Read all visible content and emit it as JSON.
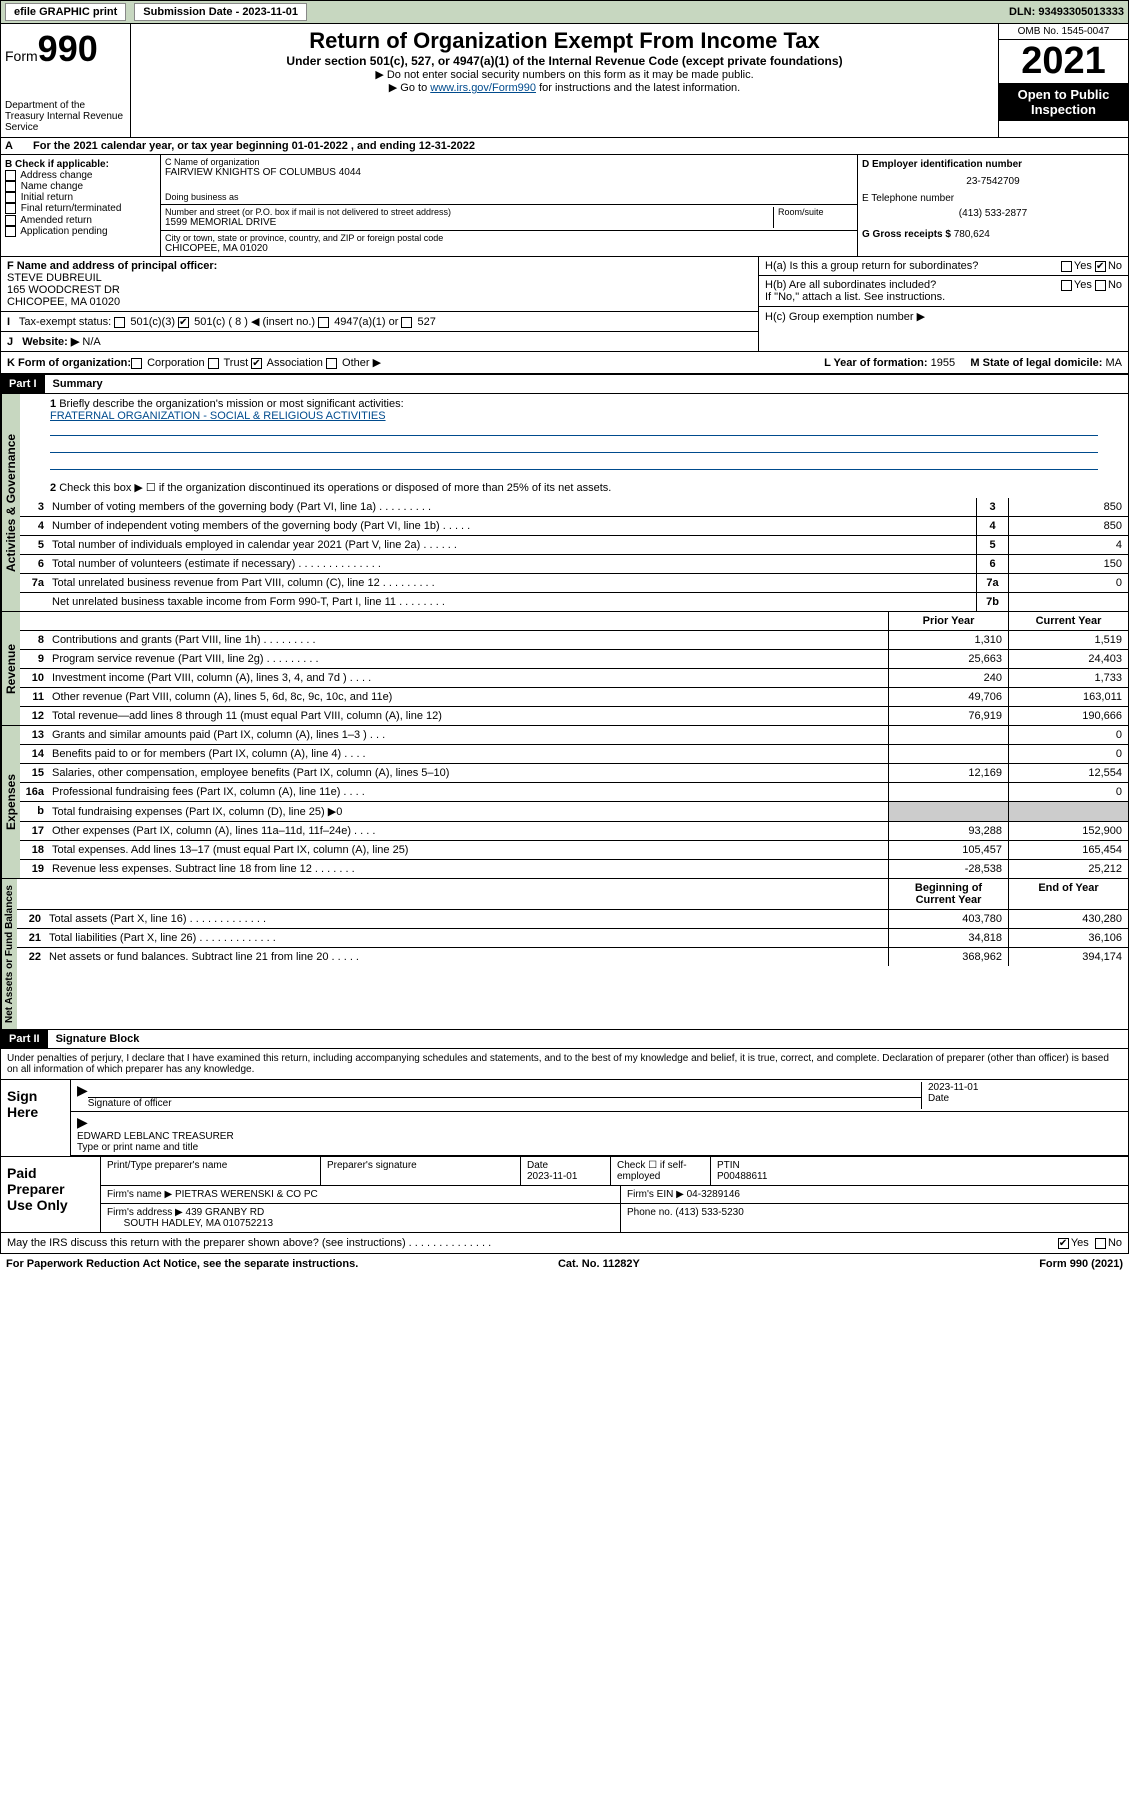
{
  "topbar": {
    "efile": "efile GRAPHIC print",
    "sub_label": "Submission Date - 2023-11-01",
    "dln": "DLN: 93493305013333"
  },
  "header": {
    "form_prefix": "Form",
    "form_number": "990",
    "title": "Return of Organization Exempt From Income Tax",
    "subtitle": "Under section 501(c), 527, or 4947(a)(1) of the Internal Revenue Code (except private foundations)",
    "note1": "▶ Do not enter social security numbers on this form as it may be made public.",
    "note2_pre": "▶ Go to ",
    "note2_link": "www.irs.gov/Form990",
    "note2_post": " for instructions and the latest information.",
    "omb": "OMB No. 1545-0047",
    "year": "2021",
    "open_pub": "Open to Public Inspection",
    "dept": "Department of the Treasury Internal Revenue Service"
  },
  "line_a": "For the 2021 calendar year, or tax year beginning 01-01-2022 , and ending 12-31-2022",
  "box_b": {
    "header": "B Check if applicable:",
    "items": [
      "Address change",
      "Name change",
      "Initial return",
      "Final return/terminated",
      "Amended return",
      "Application pending"
    ]
  },
  "box_c": {
    "name_label": "C Name of organization",
    "name": "FAIRVIEW KNIGHTS OF COLUMBUS 4044",
    "dba_label": "Doing business as",
    "dba": "",
    "street_label": "Number and street (or P.O. box if mail is not delivered to street address)",
    "room_label": "Room/suite",
    "street": "1599 MEMORIAL DRIVE",
    "city_label": "City or town, state or province, country, and ZIP or foreign postal code",
    "city": "CHICOPEE, MA  01020"
  },
  "box_d": {
    "ein_label": "D Employer identification number",
    "ein": "23-7542709",
    "phone_label": "E Telephone number",
    "phone": "(413) 533-2877",
    "gross_label": "G Gross receipts $",
    "gross": "780,624"
  },
  "box_f": {
    "label": "F Name and address of principal officer:",
    "name": "STEVE DUBREUIL",
    "addr1": "165 WOODCREST DR",
    "addr2": "CHICOPEE, MA  01020"
  },
  "box_h": {
    "ha": "H(a) Is this a group return for subordinates?",
    "hb": "H(b) Are all subordinates included?",
    "hb_note": "If \"No,\" attach a list. See instructions.",
    "hc": "H(c) Group exemption number ▶",
    "yes": "Yes",
    "no": "No"
  },
  "box_i": {
    "label": "Tax-exempt status:",
    "opt1": "501(c)(3)",
    "opt2": "501(c) ( 8 ) ◀ (insert no.)",
    "opt3": "4947(a)(1) or",
    "opt4": "527"
  },
  "box_j": {
    "label": "Website: ▶",
    "val": "N/A"
  },
  "box_k": {
    "label": "K Form of organization:",
    "opts": [
      "Corporation",
      "Trust",
      "Association",
      "Other ▶"
    ],
    "year_label": "L Year of formation:",
    "year": "1955",
    "state_label": "M State of legal domicile:",
    "state": "MA"
  },
  "part1": {
    "hdr": "Part I",
    "title": "Summary",
    "line1_label": "Briefly describe the organization's mission or most significant activities:",
    "line1_text": "FRATERNAL ORGANIZATION - SOCIAL & RELIGIOUS ACTIVITIES",
    "line2": "Check this box ▶ ☐ if the organization discontinued its operations or disposed of more than 25% of its net assets.",
    "vtab_ag": "Activities & Governance",
    "vtab_rev": "Revenue",
    "vtab_exp": "Expenses",
    "vtab_na": "Net Assets or Fund Balances",
    "rows_ag": [
      {
        "n": "3",
        "d": "Number of voting members of the governing body (Part VI, line 1a) . . . . . . . . .",
        "b": "3",
        "v": "850"
      },
      {
        "n": "4",
        "d": "Number of independent voting members of the governing body (Part VI, line 1b) . . . . .",
        "b": "4",
        "v": "850"
      },
      {
        "n": "5",
        "d": "Total number of individuals employed in calendar year 2021 (Part V, line 2a) . . . . . .",
        "b": "5",
        "v": "4"
      },
      {
        "n": "6",
        "d": "Total number of volunteers (estimate if necessary) . . . . . . . . . . . . . .",
        "b": "6",
        "v": "150"
      },
      {
        "n": "7a",
        "d": "Total unrelated business revenue from Part VIII, column (C), line 12 . . . . . . . . .",
        "b": "7a",
        "v": "0"
      },
      {
        "n": "",
        "d": "Net unrelated business taxable income from Form 990-T, Part I, line 11 . . . . . . . .",
        "b": "7b",
        "v": ""
      }
    ],
    "col_prior": "Prior Year",
    "col_current": "Current Year",
    "col_begin": "Beginning of Current Year",
    "col_end": "End of Year",
    "rows_rev": [
      {
        "n": "8",
        "d": "Contributions and grants (Part VIII, line 1h) . . . . . . . . .",
        "p": "1,310",
        "c": "1,519"
      },
      {
        "n": "9",
        "d": "Program service revenue (Part VIII, line 2g) . . . . . . . . .",
        "p": "25,663",
        "c": "24,403"
      },
      {
        "n": "10",
        "d": "Investment income (Part VIII, column (A), lines 3, 4, and 7d ) . . . .",
        "p": "240",
        "c": "1,733"
      },
      {
        "n": "11",
        "d": "Other revenue (Part VIII, column (A), lines 5, 6d, 8c, 9c, 10c, and 11e)",
        "p": "49,706",
        "c": "163,011"
      },
      {
        "n": "12",
        "d": "Total revenue—add lines 8 through 11 (must equal Part VIII, column (A), line 12)",
        "p": "76,919",
        "c": "190,666"
      }
    ],
    "rows_exp": [
      {
        "n": "13",
        "d": "Grants and similar amounts paid (Part IX, column (A), lines 1–3 ) . . .",
        "p": "",
        "c": "0"
      },
      {
        "n": "14",
        "d": "Benefits paid to or for members (Part IX, column (A), line 4) . . . .",
        "p": "",
        "c": "0"
      },
      {
        "n": "15",
        "d": "Salaries, other compensation, employee benefits (Part IX, column (A), lines 5–10)",
        "p": "12,169",
        "c": "12,554"
      },
      {
        "n": "16a",
        "d": "Professional fundraising fees (Part IX, column (A), line 11e) . . . .",
        "p": "",
        "c": "0"
      },
      {
        "n": "b",
        "d": "Total fundraising expenses (Part IX, column (D), line 25) ▶0",
        "p": "grey",
        "c": "grey"
      },
      {
        "n": "17",
        "d": "Other expenses (Part IX, column (A), lines 11a–11d, 11f–24e) . . . .",
        "p": "93,288",
        "c": "152,900"
      },
      {
        "n": "18",
        "d": "Total expenses. Add lines 13–17 (must equal Part IX, column (A), line 25)",
        "p": "105,457",
        "c": "165,454"
      },
      {
        "n": "19",
        "d": "Revenue less expenses. Subtract line 18 from line 12 . . . . . . .",
        "p": "-28,538",
        "c": "25,212"
      }
    ],
    "rows_na": [
      {
        "n": "20",
        "d": "Total assets (Part X, line 16) . . . . . . . . . . . . .",
        "p": "403,780",
        "c": "430,280"
      },
      {
        "n": "21",
        "d": "Total liabilities (Part X, line 26) . . . . . . . . . . . . .",
        "p": "34,818",
        "c": "36,106"
      },
      {
        "n": "22",
        "d": "Net assets or fund balances. Subtract line 21 from line 20 . . . . .",
        "p": "368,962",
        "c": "394,174"
      }
    ]
  },
  "part2": {
    "hdr": "Part II",
    "title": "Signature Block",
    "decl": "Under penalties of perjury, I declare that I have examined this return, including accompanying schedules and statements, and to the best of my knowledge and belief, it is true, correct, and complete. Declaration of preparer (other than officer) is based on all information of which preparer has any knowledge.",
    "sign_here": "Sign Here",
    "sig_officer": "Signature of officer",
    "sig_date": "2023-11-01",
    "date_lbl": "Date",
    "officer_name": "EDWARD LEBLANC TREASURER",
    "officer_name_lbl": "Type or print name and title",
    "paid_prep": "Paid Preparer Use Only",
    "pt_name_lbl": "Print/Type preparer's name",
    "pt_sig_lbl": "Preparer's signature",
    "pt_date_lbl": "Date",
    "pt_date": "2023-11-01",
    "pt_check": "Check ☐ if self-employed",
    "ptin_lbl": "PTIN",
    "ptin": "P00488611",
    "firm_name_lbl": "Firm's name ▶",
    "firm_name": "PIETRAS WERENSKI & CO PC",
    "firm_ein_lbl": "Firm's EIN ▶",
    "firm_ein": "04-3289146",
    "firm_addr_lbl": "Firm's address ▶",
    "firm_addr1": "439 GRANBY RD",
    "firm_addr2": "SOUTH HADLEY, MA  010752213",
    "firm_phone_lbl": "Phone no.",
    "firm_phone": "(413) 533-5230",
    "discuss": "May the IRS discuss this return with the preparer shown above? (see instructions) . . . . . . . . . . . . . .",
    "yes": "Yes",
    "no": "No"
  },
  "footer": {
    "pra": "For Paperwork Reduction Act Notice, see the separate instructions.",
    "cat": "Cat. No. 11282Y",
    "form": "Form 990 (2021)"
  }
}
